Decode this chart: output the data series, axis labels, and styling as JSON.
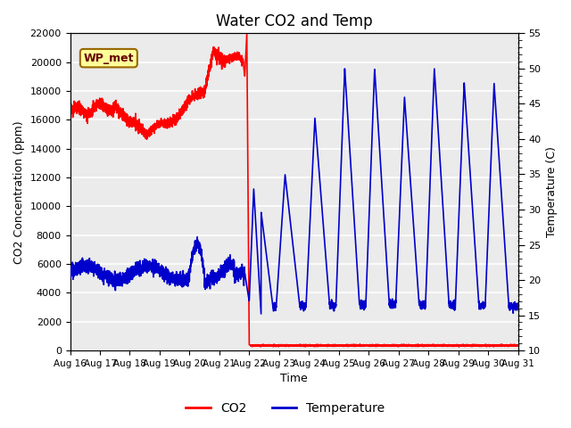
{
  "title": "Water CO2 and Temp",
  "xlabel": "Time",
  "ylabel_left": "CO2 Concentration (ppm)",
  "ylabel_right": "Temperature (C)",
  "ylim_left": [
    0,
    22000
  ],
  "ylim_right": [
    10,
    55
  ],
  "yticks_left": [
    0,
    2000,
    4000,
    6000,
    8000,
    10000,
    12000,
    14000,
    16000,
    18000,
    20000,
    22000
  ],
  "yticks_right": [
    10,
    15,
    20,
    25,
    30,
    35,
    40,
    45,
    50,
    55
  ],
  "xtick_labels": [
    "Aug 16",
    "Aug 17",
    "Aug 18",
    "Aug 19",
    "Aug 20",
    "Aug 21",
    "Aug 22",
    "Aug 23",
    "Aug 24",
    "Aug 25",
    "Aug 26",
    "Aug 27",
    "Aug 28",
    "Aug 29",
    "Aug 30",
    "Aug 31"
  ],
  "co2_color": "#FF0000",
  "temp_color": "#0000CC",
  "plot_bg_color": "#EBEBEB",
  "annotation_label": "WP_met",
  "annotation_bg": "#FFFF99",
  "annotation_border": "#996600",
  "annotation_text_color": "#660000",
  "legend_co2": "CO2",
  "legend_temp": "Temperature",
  "grid_color": "#FFFFFF",
  "title_fontsize": 12,
  "label_fontsize": 9
}
